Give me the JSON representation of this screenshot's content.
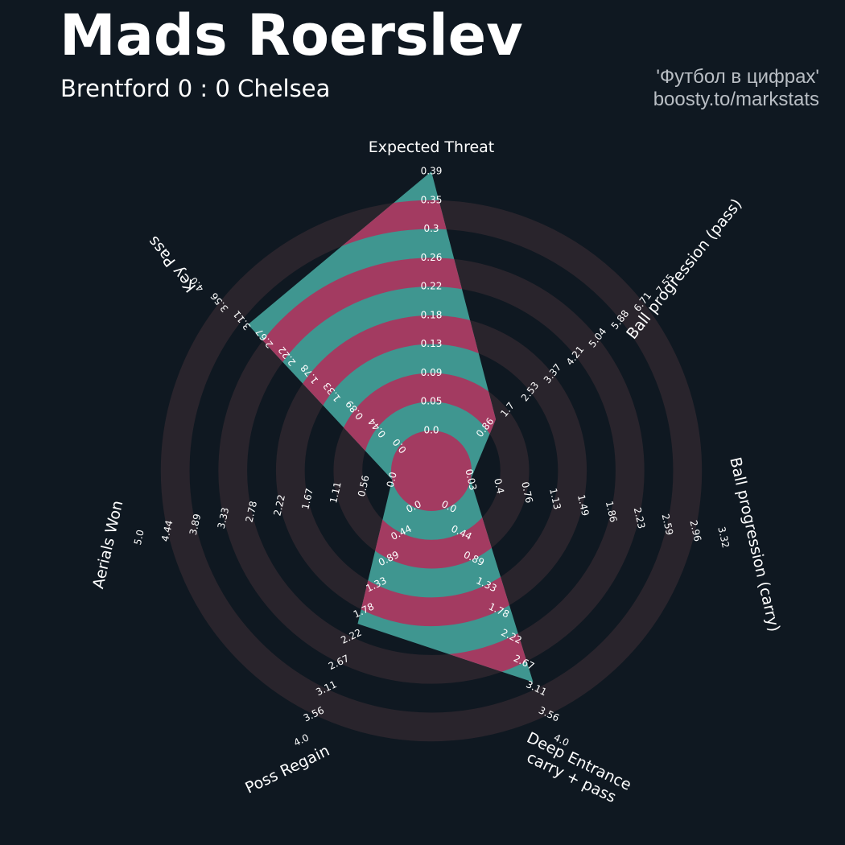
{
  "header": {
    "title": "Mads Roerslev",
    "subtitle": "Brentford 0 : 0 Chelsea",
    "credit_line1": "'Футбол в цифрах'",
    "credit_line2": "boosty.to/markstats"
  },
  "colors": {
    "background": "#0f1821",
    "ring": "#29242c",
    "teal": "#3f9690",
    "magenta": "#a33b61",
    "text": "#ffffff",
    "credit": "#b9bec4"
  },
  "chart_data": {
    "type": "radar",
    "params": [
      {
        "label": "Expected Threat",
        "label_lines": [
          "Expected Threat"
        ],
        "value": 0.39,
        "ticks": [
          "0.0",
          "0.05",
          "0.09",
          "0.13",
          "0.18",
          "0.22",
          "0.26",
          "0.3",
          "0.35",
          "0.39"
        ]
      },
      {
        "label": "Ball progression (pass)",
        "label_lines": [
          "Ball progression (pass)"
        ],
        "value": 1.95,
        "ticks": [
          "0.86",
          "1.7",
          "2.53",
          "3.37",
          "4.21",
          "5.04",
          "5.88",
          "6.71",
          "7.55"
        ]
      },
      {
        "label": "Ball progression (carry)",
        "label_lines": [
          "Ball progression (carry)"
        ],
        "value": 0.0,
        "ticks": [
          "0.03",
          "0.4",
          "0.76",
          "1.13",
          "1.49",
          "1.86",
          "2.23",
          "2.59",
          "2.96",
          "3.32"
        ]
      },
      {
        "label": "Deep Entrance carry + pass",
        "label_lines": [
          "Deep Entrance",
          "carry + pass"
        ],
        "value": 3.0,
        "ticks": [
          "0.0",
          "0.44",
          "0.89",
          "1.33",
          "1.78",
          "2.22",
          "2.67",
          "3.11",
          "3.56",
          "4.0"
        ]
      },
      {
        "label": "Poss Regain",
        "label_lines": [
          "Poss Regain"
        ],
        "value": 2.0,
        "ticks": [
          "0.0",
          "0.44",
          "0.89",
          "1.33",
          "1.78",
          "2.22",
          "2.67",
          "3.11",
          "3.56",
          "4.0"
        ]
      },
      {
        "label": "Aerials Won",
        "label_lines": [
          "Aerials Won"
        ],
        "value": 0.0,
        "ticks": [
          "0.0",
          "0.56",
          "1.11",
          "1.67",
          "2.22",
          "2.78",
          "3.33",
          "3.89",
          "4.44",
          "5.0"
        ]
      },
      {
        "label": "Key Pass",
        "label_lines": [
          "Key Pass"
        ],
        "value": 3.0,
        "ticks": [
          "0.0",
          "0.44",
          "0.89",
          "1.33",
          "1.78",
          "2.22",
          "2.67",
          "3.11",
          "3.56",
          "4.0"
        ]
      }
    ],
    "grid": true
  }
}
